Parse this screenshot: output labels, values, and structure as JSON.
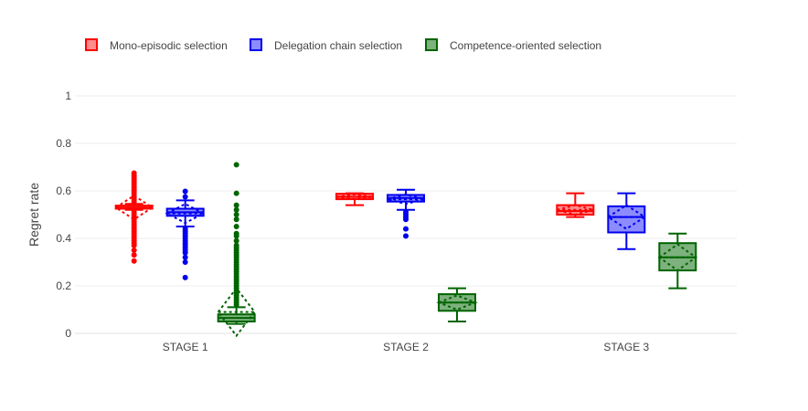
{
  "chart_data": {
    "type": "box",
    "title": "",
    "xlabel": "",
    "ylabel": "Regret rate",
    "ylim": [
      0,
      1
    ],
    "y_ticks": [
      "0",
      "0.2",
      "0.4",
      "0.6",
      "0.8",
      "1"
    ],
    "categories": [
      "STAGE 1",
      "STAGE 2",
      "STAGE 3"
    ],
    "legend_position": "top-left",
    "grid": true,
    "box_style": "boxes with whiskers, dashed mean/std diamond, outlier points",
    "series": [
      {
        "name": "Mono-episodic selection",
        "color": "#ff0000",
        "fill": "#ff7f7f",
        "boxes": [
          {
            "category": "STAGE 1",
            "q1": 0.525,
            "median": 0.53,
            "q3": 0.538,
            "lower_fence": 0.52,
            "upper_fence": 0.545,
            "mean": 0.53,
            "sd": 0.05,
            "outliers": [
              0.305,
              0.33,
              0.35,
              0.37,
              0.38,
              0.39,
              0.4,
              0.41,
              0.42,
              0.43,
              0.44,
              0.45,
              0.46,
              0.47,
              0.48,
              0.49,
              0.5,
              0.51,
              0.555,
              0.565,
              0.575,
              0.585,
              0.595,
              0.605,
              0.615,
              0.625,
              0.635,
              0.645,
              0.655,
              0.665,
              0.675
            ]
          },
          {
            "category": "STAGE 2",
            "q1": 0.565,
            "median": 0.575,
            "q3": 0.588,
            "lower_fence": 0.54,
            "upper_fence": 0.59,
            "mean": 0.575,
            "sd": 0.01,
            "outliers": []
          },
          {
            "category": "STAGE 3",
            "q1": 0.5,
            "median": 0.515,
            "q3": 0.54,
            "lower_fence": 0.49,
            "upper_fence": 0.59,
            "mean": 0.52,
            "sd": 0.02,
            "outliers": []
          }
        ]
      },
      {
        "name": "Delegation chain selection",
        "color": "#0000ee",
        "fill": "#7f7fff",
        "boxes": [
          {
            "category": "STAGE 1",
            "q1": 0.495,
            "median": 0.51,
            "q3": 0.525,
            "lower_fence": 0.45,
            "upper_fence": 0.56,
            "mean": 0.505,
            "sd": 0.04,
            "outliers": [
              0.235,
              0.3,
              0.32,
              0.34,
              0.35,
              0.36,
              0.37,
              0.38,
              0.39,
              0.4,
              0.41,
              0.42,
              0.43,
              0.44,
              0.575,
              0.598
            ]
          },
          {
            "category": "STAGE 2",
            "q1": 0.555,
            "median": 0.57,
            "q3": 0.583,
            "lower_fence": 0.52,
            "upper_fence": 0.605,
            "mean": 0.565,
            "sd": 0.02,
            "outliers": [
              0.41,
              0.44,
              0.48,
              0.49,
              0.5,
              0.51
            ]
          },
          {
            "category": "STAGE 3",
            "q1": 0.425,
            "median": 0.49,
            "q3": 0.535,
            "lower_fence": 0.355,
            "upper_fence": 0.59,
            "mean": 0.49,
            "sd": 0.05,
            "outliers": []
          }
        ]
      },
      {
        "name": "Competence-oriented selection",
        "color": "#006400",
        "fill": "#6fa86f",
        "boxes": [
          {
            "category": "STAGE 1",
            "q1": 0.05,
            "median": 0.065,
            "q3": 0.08,
            "lower_fence": 0.04,
            "upper_fence": 0.11,
            "mean": 0.09,
            "sd": 0.1,
            "outliers": [
              0.12,
              0.13,
              0.14,
              0.15,
              0.16,
              0.17,
              0.18,
              0.19,
              0.2,
              0.21,
              0.22,
              0.23,
              0.24,
              0.25,
              0.26,
              0.27,
              0.28,
              0.29,
              0.3,
              0.31,
              0.32,
              0.33,
              0.34,
              0.35,
              0.36,
              0.37,
              0.39,
              0.41,
              0.42,
              0.45,
              0.48,
              0.5,
              0.52,
              0.54,
              0.59,
              0.71
            ]
          },
          {
            "category": "STAGE 2",
            "q1": 0.095,
            "median": 0.13,
            "q3": 0.165,
            "lower_fence": 0.05,
            "upper_fence": 0.19,
            "mean": 0.13,
            "sd": 0.03,
            "outliers": []
          },
          {
            "category": "STAGE 3",
            "q1": 0.265,
            "median": 0.32,
            "q3": 0.38,
            "lower_fence": 0.19,
            "upper_fence": 0.42,
            "mean": 0.32,
            "sd": 0.055,
            "outliers": []
          }
        ]
      }
    ]
  }
}
